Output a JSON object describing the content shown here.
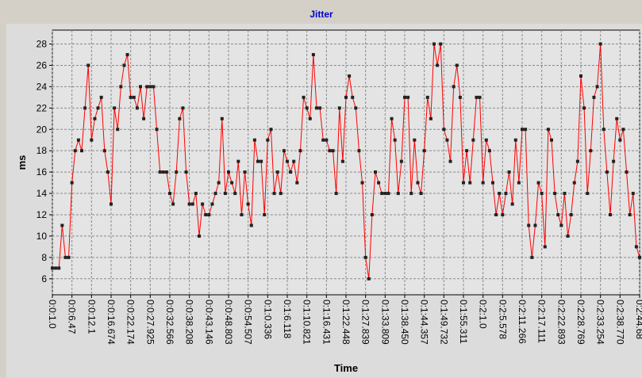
{
  "chart_data": {
    "type": "line",
    "title": "Jitter",
    "x_label": "Time",
    "y_label": "ms",
    "categories": [
      "0:0:1.0",
      null,
      null,
      null,
      null,
      null,
      "0:0:6.47",
      null,
      null,
      null,
      null,
      null,
      "0:0:12.1",
      null,
      null,
      null,
      null,
      null,
      "0:0:16.674",
      null,
      null,
      null,
      null,
      null,
      "0:0:22.174",
      null,
      null,
      null,
      null,
      null,
      "0:0:27.925",
      null,
      null,
      null,
      null,
      null,
      "0:0:32.566",
      null,
      null,
      null,
      null,
      null,
      "0:0:38.208",
      null,
      null,
      null,
      null,
      null,
      "0:0:43.146",
      null,
      null,
      null,
      null,
      null,
      "0:0:48.803",
      null,
      null,
      null,
      null,
      null,
      "0:0:54.507",
      null,
      null,
      null,
      null,
      null,
      "0:1:0.336",
      null,
      null,
      null,
      null,
      null,
      "0:1:6.118",
      null,
      null,
      null,
      null,
      null,
      "0:1:10.821",
      null,
      null,
      null,
      null,
      null,
      "0:1:16.431",
      null,
      null,
      null,
      null,
      null,
      "0:1:22.448",
      null,
      null,
      null,
      null,
      null,
      "0:1:27.839",
      null,
      null,
      null,
      null,
      null,
      "0:1:33.809",
      null,
      null,
      null,
      null,
      null,
      "0:1:38.450",
      null,
      null,
      null,
      null,
      null,
      "0:1:44.357",
      null,
      null,
      null,
      null,
      null,
      "0:1:49.732",
      null,
      null,
      null,
      null,
      null,
      "0:1:55.311",
      null,
      null,
      null,
      null,
      null,
      "0:2:1.0",
      null,
      null,
      null,
      null,
      null,
      "0:2:5.578",
      null,
      null,
      null,
      null,
      null,
      "0:2:11.266",
      null,
      null,
      null,
      null,
      null,
      "0:2:17.111",
      null,
      null,
      null,
      null,
      null,
      "0:2:22.893",
      null,
      null,
      null,
      null,
      null,
      "0:2:28.769",
      null,
      null,
      null,
      null,
      null,
      "0:2:33.254",
      null,
      null,
      null,
      null,
      null,
      "0:2:38.770",
      null,
      null,
      null,
      null,
      null,
      "0:2:44.68"
    ],
    "values": [
      7,
      7,
      7,
      11,
      8,
      8,
      15,
      18,
      19,
      18,
      22,
      26,
      19,
      21,
      22,
      23,
      18,
      16,
      13,
      22,
      20,
      24,
      26,
      27,
      23,
      23,
      22,
      24,
      21,
      24,
      24,
      24,
      20,
      16,
      16,
      16,
      14,
      13,
      16,
      21,
      22,
      16,
      13,
      13,
      14,
      10,
      13,
      12,
      12,
      13,
      14,
      15,
      21,
      14,
      16,
      15,
      14,
      17,
      12,
      16,
      13,
      11,
      19,
      17,
      17,
      12,
      19,
      20,
      14,
      16,
      14,
      18,
      17,
      16,
      17,
      15,
      18,
      23,
      22,
      21,
      27,
      22,
      22,
      19,
      19,
      18,
      18,
      14,
      22,
      17,
      23,
      25,
      23,
      22,
      18,
      15,
      8,
      6,
      12,
      16,
      15,
      14,
      14,
      14,
      21,
      19,
      14,
      17,
      23,
      23,
      14,
      19,
      15,
      14,
      18,
      23,
      21,
      28,
      26,
      28,
      20,
      19,
      17,
      24,
      26,
      23,
      15,
      18,
      15,
      19,
      23,
      23,
      15,
      19,
      18,
      15,
      12,
      14,
      12,
      14,
      16,
      13,
      19,
      15,
      20,
      20,
      11,
      8,
      11,
      15,
      14,
      9,
      20,
      19,
      14,
      12,
      11,
      14,
      10,
      12,
      15,
      17,
      25,
      22,
      14,
      18,
      23,
      24,
      28,
      20,
      16,
      12,
      17,
      21,
      19,
      20,
      16,
      12,
      14,
      9,
      8
    ],
    "color": "#ff0000",
    "ylim": [
      4.5,
      29.3
    ],
    "yticks": [
      6,
      8,
      10,
      12,
      14,
      16,
      18,
      20,
      22,
      24,
      26,
      28
    ],
    "grid": true
  }
}
